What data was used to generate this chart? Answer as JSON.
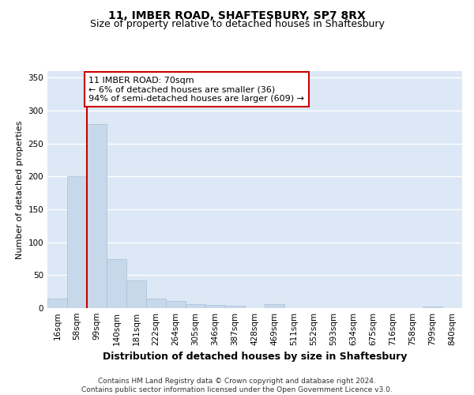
{
  "title1": "11, IMBER ROAD, SHAFTESBURY, SP7 8RX",
  "title2": "Size of property relative to detached houses in Shaftesbury",
  "xlabel": "Distribution of detached houses by size in Shaftesbury",
  "ylabel": "Number of detached properties",
  "bin_labels": [
    "16sqm",
    "58sqm",
    "99sqm",
    "140sqm",
    "181sqm",
    "222sqm",
    "264sqm",
    "305sqm",
    "346sqm",
    "387sqm",
    "428sqm",
    "469sqm",
    "511sqm",
    "552sqm",
    "593sqm",
    "634sqm",
    "675sqm",
    "716sqm",
    "758sqm",
    "799sqm",
    "840sqm"
  ],
  "bar_values": [
    14,
    201,
    280,
    75,
    42,
    15,
    11,
    6,
    5,
    4,
    0,
    6,
    0,
    0,
    0,
    0,
    0,
    0,
    0,
    2,
    0
  ],
  "bar_color": "#c8d8eb",
  "bar_edgecolor": "#a8c0d8",
  "property_line_x": 1.5,
  "property_line_color": "#cc0000",
  "annotation_text": "11 IMBER ROAD: 70sqm\n← 6% of detached houses are smaller (36)\n94% of semi-detached houses are larger (609) →",
  "annotation_box_facecolor": "#ffffff",
  "annotation_box_edgecolor": "#cc0000",
  "ylim": [
    0,
    360
  ],
  "yticks": [
    0,
    50,
    100,
    150,
    200,
    250,
    300,
    350
  ],
  "fig_bgcolor": "#ffffff",
  "plot_bgcolor": "#dce8f5",
  "grid_color": "#ffffff",
  "footer_text": "Contains HM Land Registry data © Crown copyright and database right 2024.\nContains public sector information licensed under the Open Government Licence v3.0.",
  "title1_fontsize": 10,
  "title2_fontsize": 9,
  "xlabel_fontsize": 9,
  "ylabel_fontsize": 8,
  "tick_fontsize": 7.5,
  "annotation_fontsize": 8,
  "footer_fontsize": 6.5
}
